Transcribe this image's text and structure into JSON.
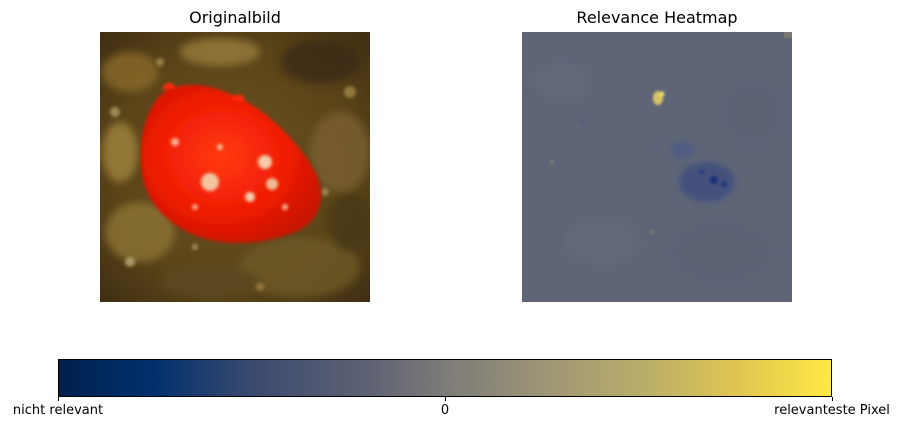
{
  "figure": {
    "left_panel_title": "Originalbild",
    "right_panel_title": "Relevance Heatmap"
  },
  "chart_data": {
    "type": "heatmap",
    "panels": [
      {
        "title": "Originalbild",
        "content": "photograph of a red sea slug on brown algae-covered rock"
      },
      {
        "title": "Relevance Heatmap",
        "content": "mostly neutral grey relevance map with faint blue and yellow spots"
      }
    ],
    "colorbar": {
      "colormap": "cividis",
      "orientation": "horizontal",
      "tick_labels": [
        "nicht relevant",
        "0",
        "relevanteste Pixel"
      ],
      "tick_values": [
        -1,
        0,
        1
      ],
      "range": [
        -1,
        1
      ],
      "colors": [
        "#00204c",
        "#7c7b78",
        "#ffe945"
      ]
    },
    "grid": false,
    "axes_visible": false
  }
}
